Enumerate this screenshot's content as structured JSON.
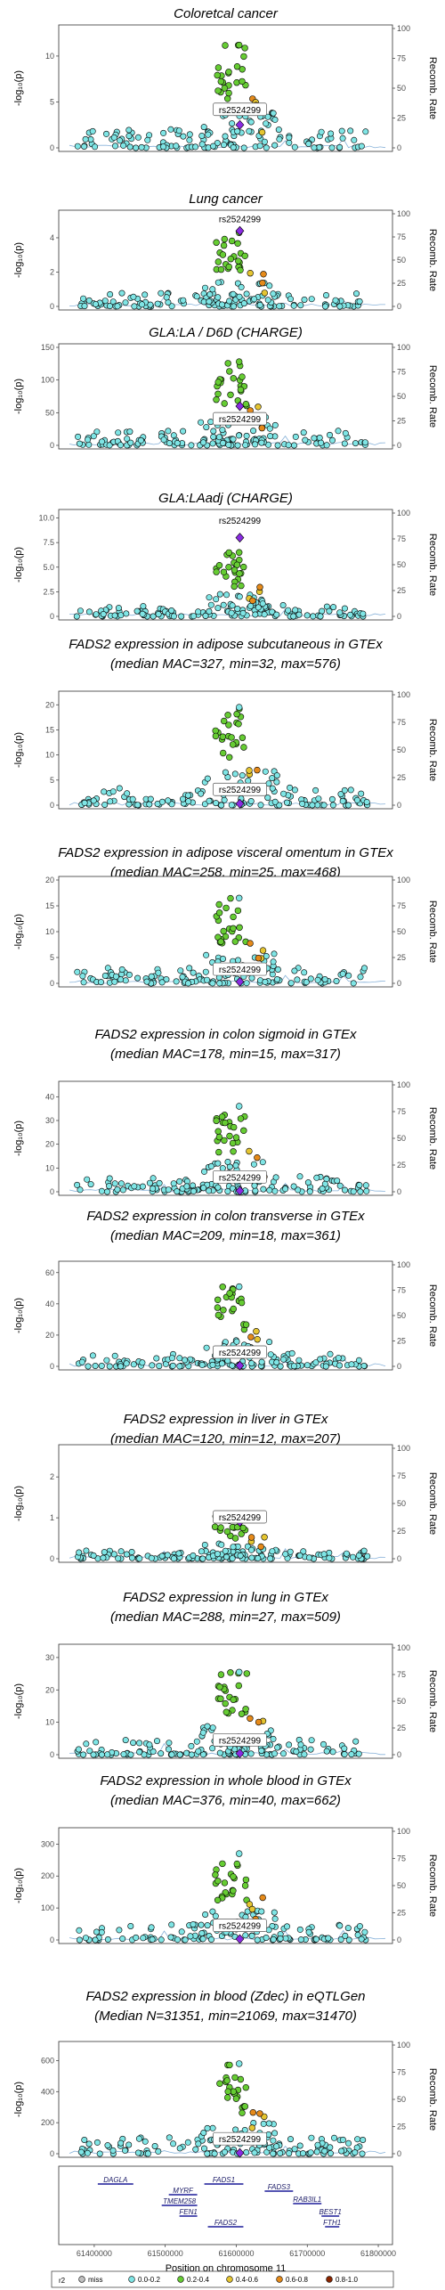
{
  "colors": {
    "miss": "#c0c0c0",
    "r2_0_0.2": "#7fe5e5",
    "r2_0.2_0.4": "#66cc33",
    "r2_0.4_0.6": "#e5c531",
    "r2_0.6_0.8": "#e58a1a",
    "r2_0.8_1.0": "#8b2500",
    "lead": "#8a2be2",
    "recomb": "#6a9fd0"
  },
  "common": {
    "x_ticks": [
      "61400000",
      "61500000",
      "61600000",
      "61700000",
      "61800000"
    ],
    "x_label": "Position on chromosome 11",
    "y_label": "-log₁₀(p)",
    "y2_label": "Recomb. Rate",
    "lead_snp": "rs2524299"
  },
  "legend": {
    "title": "r2",
    "entries": [
      "miss",
      "0.0-0.2",
      "0.2-0.4",
      "0.4-0.6",
      "0.6-0.8",
      "0.8-1.0"
    ]
  },
  "genes": [
    "DAGLA",
    "FADS1",
    "FADS3",
    "MYRF",
    "TMEM258",
    "RAB3IL1",
    "FEN1",
    "BEST1",
    "FADS2",
    "FTH1"
  ],
  "chart_data": [
    {
      "type": "scatter",
      "title_lines": [
        "Coloretcal cancer"
      ],
      "ylim": [
        0,
        13
      ],
      "y_ticks": [
        "0",
        "5",
        "10"
      ],
      "y2_ticks": [
        "0",
        "25",
        "50",
        "75",
        "100"
      ],
      "lead_y": 2.5,
      "peak_y": 11.2,
      "lead_label_y": 4.0
    },
    {
      "type": "scatter",
      "title_lines": [
        "Lung cancer"
      ],
      "ylim": [
        0,
        5.4
      ],
      "y_ticks": [
        "0",
        "2",
        "4"
      ],
      "y2_ticks": [
        "0",
        "25",
        "50",
        "75",
        "100"
      ],
      "lead_y": 4.4,
      "peak_y": 4.3,
      "lead_label_y": 5.0
    },
    {
      "type": "scatter",
      "title_lines": [
        "GLA:LA / D6D (CHARGE)"
      ],
      "ylim": [
        0,
        150
      ],
      "y_ticks": [
        "0",
        "50",
        "100",
        "150"
      ],
      "y2_ticks": [
        "0",
        "25",
        "50",
        "75",
        "100"
      ],
      "lead_y": 60,
      "peak_y": 128,
      "lead_label_y": 38
    },
    {
      "type": "scatter",
      "title_lines": [
        "GLA:LAadj (CHARGE)"
      ],
      "ylim": [
        0,
        10.5
      ],
      "y_ticks": [
        "0",
        "2.5",
        "5.0",
        "7.5",
        "10.0"
      ],
      "y2_ticks": [
        "0",
        "25",
        "50",
        "75",
        "100"
      ],
      "lead_y": 8.0,
      "peak_y": 6.5,
      "lead_label_y": 9.6
    },
    {
      "type": "scatter",
      "title_lines": [
        "FADS2 expression in adipose subcutaneous in GTEx",
        "(median MAC=327, min=32, max=576)"
      ],
      "ylim": [
        0,
        22
      ],
      "y_ticks": [
        "0",
        "5",
        "10",
        "15",
        "20"
      ],
      "y2_ticks": [
        "0",
        "25",
        "50",
        "75",
        "100"
      ],
      "lead_y": 0.3,
      "peak_y": 19.5,
      "lead_label_y": 2.8
    },
    {
      "type": "scatter",
      "title_lines": [
        "FADS2 expression in adipose visceral omentum in GTEx",
        "(median MAC=258, min=25, max=468)"
      ],
      "ylim": [
        0,
        20
      ],
      "y_ticks": [
        "0",
        "5",
        "10",
        "15",
        "20"
      ],
      "y2_ticks": [
        "0",
        "25",
        "50",
        "75",
        "100"
      ],
      "lead_y": 0.3,
      "peak_y": 16.5,
      "lead_label_y": 2.4
    },
    {
      "type": "scatter",
      "title_lines": [
        "FADS2 expression in colon sigmoid in GTEx",
        "(median MAC=178, min=15, max=317)"
      ],
      "ylim": [
        0,
        45
      ],
      "y_ticks": [
        "0",
        "10",
        "20",
        "30",
        "40"
      ],
      "y2_ticks": [
        "0",
        "25",
        "50",
        "75",
        "100"
      ],
      "lead_y": 0.4,
      "peak_y": 36,
      "lead_label_y": 5.5
    },
    {
      "type": "scatter",
      "title_lines": [
        "FADS2 expression in colon transverse in GTEx",
        "(median MAC=209, min=18, max=361)"
      ],
      "ylim": [
        0,
        65
      ],
      "y_ticks": [
        "0",
        "20",
        "40",
        "60"
      ],
      "y2_ticks": [
        "0",
        "25",
        "50",
        "75",
        "100"
      ],
      "lead_y": 0.5,
      "peak_y": 51,
      "lead_label_y": 8
    },
    {
      "type": "scatter",
      "title_lines": [
        "FADS2 expression in liver in GTEx",
        "(median MAC=120, min=12, max=207)"
      ],
      "ylim": [
        0,
        2.7
      ],
      "y_ticks": [
        "0",
        "1",
        "2"
      ],
      "y2_ticks": [
        "0",
        "25",
        "50",
        "75",
        "100"
      ],
      "lead_y": 0.9,
      "peak_y": 1.1,
      "lead_label_y": 0.98
    },
    {
      "type": "scatter",
      "title_lines": [
        "FADS2 expression in lung in GTEx",
        "(median MAC=288, min=27, max=509)"
      ],
      "ylim": [
        0,
        33
      ],
      "y_ticks": [
        "0",
        "10",
        "20",
        "30"
      ],
      "y2_ticks": [
        "0",
        "25",
        "50",
        "75",
        "100"
      ],
      "lead_y": 0.4,
      "peak_y": 25.5,
      "lead_label_y": 4
    },
    {
      "type": "scatter",
      "title_lines": [
        "FADS2 expression in whole blood in GTEx",
        "(median MAC=376, min=40, max=662)"
      ],
      "ylim": [
        0,
        340
      ],
      "y_ticks": [
        "0",
        "100",
        "200",
        "300"
      ],
      "y2_ticks": [
        "0",
        "25",
        "50",
        "75",
        "100"
      ],
      "lead_y": 3,
      "peak_y": 270,
      "lead_label_y": 40
    },
    {
      "type": "scatter",
      "title_lines": [
        "FADS2 expression in blood (Zdec) in eQTLGen",
        "(Median N=31351, min=21069, max=31470)"
      ],
      "ylim": [
        0,
        700
      ],
      "y_ticks": [
        "0",
        "200",
        "400",
        "600"
      ],
      "y2_ticks": [
        "0",
        "25",
        "50",
        "75",
        "100"
      ],
      "lead_y": 5,
      "peak_y": 580,
      "lead_label_y": 85
    }
  ]
}
